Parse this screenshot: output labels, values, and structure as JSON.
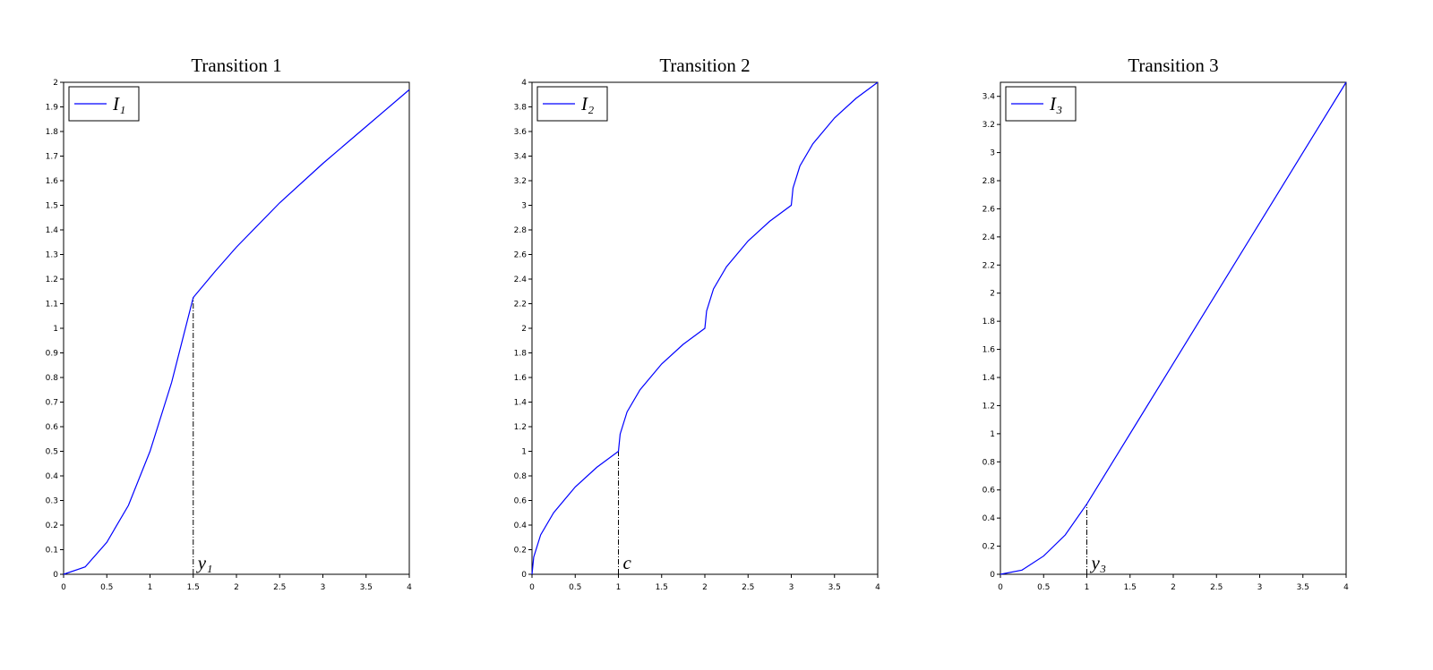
{
  "chart_data": [
    {
      "type": "line",
      "title": "Transition 1",
      "x": [
        0,
        0.25,
        0.5,
        0.75,
        1,
        1.25,
        1.5,
        1.75,
        2,
        2.5,
        3,
        3.5,
        4
      ],
      "series": [
        {
          "name": "I₁",
          "color": "#0000ff",
          "values": [
            0,
            0.03,
            0.13,
            0.28,
            0.5,
            0.78,
            1.125,
            1.23,
            1.33,
            1.51,
            1.67,
            1.82,
            1.97
          ]
        }
      ],
      "xlim": [
        0,
        4
      ],
      "ylim": [
        0,
        2
      ],
      "xticks": [
        0,
        0.5,
        1,
        1.5,
        2,
        2.5,
        3,
        3.5,
        4
      ],
      "yticks": [
        0,
        0.1,
        0.2,
        0.3,
        0.4,
        0.5,
        0.6,
        0.7,
        0.8,
        0.9,
        1,
        1.1,
        1.2,
        1.3,
        1.4,
        1.5,
        1.6,
        1.7,
        1.8,
        1.9,
        2
      ],
      "annotation": {
        "text": "y₁",
        "x": 1.5,
        "y": 1.125
      }
    },
    {
      "type": "line",
      "title": "Transition 2",
      "x": [
        0,
        0.02,
        0.1,
        0.25,
        0.5,
        0.75,
        1,
        1.02,
        1.1,
        1.25,
        1.5,
        1.75,
        2,
        2.02,
        2.1,
        2.25,
        2.5,
        2.75,
        3,
        3.02,
        3.1,
        3.25,
        3.5,
        3.75,
        4
      ],
      "series": [
        {
          "name": "I₂",
          "color": "#0000ff",
          "values": [
            0,
            0.14,
            0.32,
            0.5,
            0.71,
            0.87,
            1,
            1.14,
            1.32,
            1.5,
            1.71,
            1.87,
            2,
            2.14,
            2.32,
            2.5,
            2.71,
            2.87,
            3,
            3.14,
            3.32,
            3.5,
            3.71,
            3.87,
            4
          ]
        }
      ],
      "xlim": [
        0,
        4
      ],
      "ylim": [
        0,
        4
      ],
      "xticks": [
        0,
        0.5,
        1,
        1.5,
        2,
        2.5,
        3,
        3.5,
        4
      ],
      "yticks": [
        0,
        0.2,
        0.4,
        0.6,
        0.8,
        1,
        1.2,
        1.4,
        1.6,
        1.8,
        2,
        2.2,
        2.4,
        2.6,
        2.8,
        3,
        3.2,
        3.4,
        3.6,
        3.8,
        4
      ],
      "annotation": {
        "text": "c",
        "x": 1,
        "y": 1
      }
    },
    {
      "type": "line",
      "title": "Transition 3",
      "x": [
        0,
        0.25,
        0.5,
        0.75,
        1,
        2,
        3,
        4
      ],
      "series": [
        {
          "name": "I₃",
          "color": "#0000ff",
          "values": [
            0,
            0.03,
            0.13,
            0.28,
            0.5,
            1.5,
            2.5,
            3.5
          ]
        }
      ],
      "xlim": [
        0,
        4
      ],
      "ylim": [
        0,
        3.5
      ],
      "xticks": [
        0,
        0.5,
        1,
        1.5,
        2,
        2.5,
        3,
        3.5,
        4
      ],
      "yticks": [
        0,
        0.2,
        0.4,
        0.6,
        0.8,
        1,
        1.2,
        1.4,
        1.6,
        1.8,
        2,
        2.2,
        2.4,
        2.6,
        2.8,
        3,
        3.2,
        3.4
      ],
      "annotation": {
        "text": "y₃",
        "x": 1,
        "y": 0.5
      }
    }
  ]
}
